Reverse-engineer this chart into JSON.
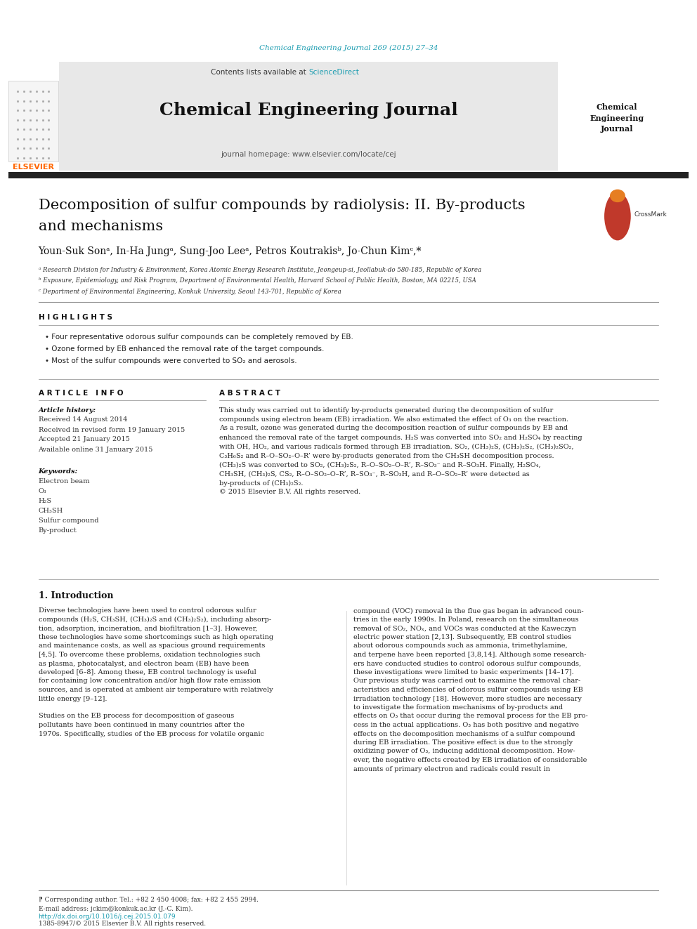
{
  "page_width": 9.92,
  "page_height": 13.23,
  "bg_color": "#ffffff",
  "journal_ref_color": "#1a9cb0",
  "journal_ref": "Chemical Engineering Journal 269 (2015) 27–34",
  "header_bg": "#e8e8e8",
  "elsevier_color": "#ff6600",
  "journal_title": "Chemical Engineering Journal",
  "journal_homepage": "journal homepage: www.elsevier.com/locate/cej",
  "contents_text": "Contents lists available at ",
  "sciencedirect_text": "ScienceDirect",
  "sciencedirect_color": "#1a9cb0",
  "journal_right": "Chemical\nEngineering\nJournal",
  "thick_bar_color": "#222222",
  "article_title_line1": "Decomposition of sulfur compounds by radiolysis: II. By-products",
  "article_title_line2": "and mechanisms",
  "affil_a": "ᵃ Research Division for Industry & Environment, Korea Atomic Energy Research Institute, Jeongeup-si, Jeollabuk-do 580-185, Republic of Korea",
  "affil_b": "ᵇ Exposure, Epidemiology, and Risk Program, Department of Environmental Health, Harvard School of Public Health, Boston, MA 02215, USA",
  "affil_c": "ᶜ Department of Environmental Engineering, Konkuk University, Seoul 143-701, Republic of Korea",
  "highlights_title": "H I G H L I G H T S",
  "highlight_1": "Four representative odorous sulfur compounds can be completely removed by EB.",
  "highlight_2": "Ozone formed by EB enhanced the removal rate of the target compounds.",
  "highlight_3": "Most of the sulfur compounds were converted to SO₂ and aerosols.",
  "article_info_title": "A R T I C L E   I N F O",
  "abstract_title": "A B S T R A C T",
  "article_history": "Article history:",
  "received": "Received 14 August 2014",
  "revised": "Received in revised form 19 January 2015",
  "accepted": "Accepted 21 January 2015",
  "available": "Available online 31 January 2015",
  "keywords_title": "Keywords:",
  "kw1": "Electron beam",
  "kw2": "O₃",
  "kw3": "H₂S",
  "kw4": "CH₃SH",
  "kw5": "Sulfur compound",
  "kw6": "By-product",
  "copyright": "© 2015 Elsevier B.V. All rights reserved.",
  "intro_title": "1. Introduction",
  "footnote_star": "⁋ Corresponding author. Tel.: +82 2 450 4008; fax: +82 2 455 2994.",
  "footnote_email": "E-mail address: jckim@konkuk.ac.kr (J.-C. Kim).",
  "doi": "http://dx.doi.org/10.1016/j.cej.2015.01.079",
  "issn": "1385-8947/© 2015 Elsevier B.V. All rights reserved."
}
